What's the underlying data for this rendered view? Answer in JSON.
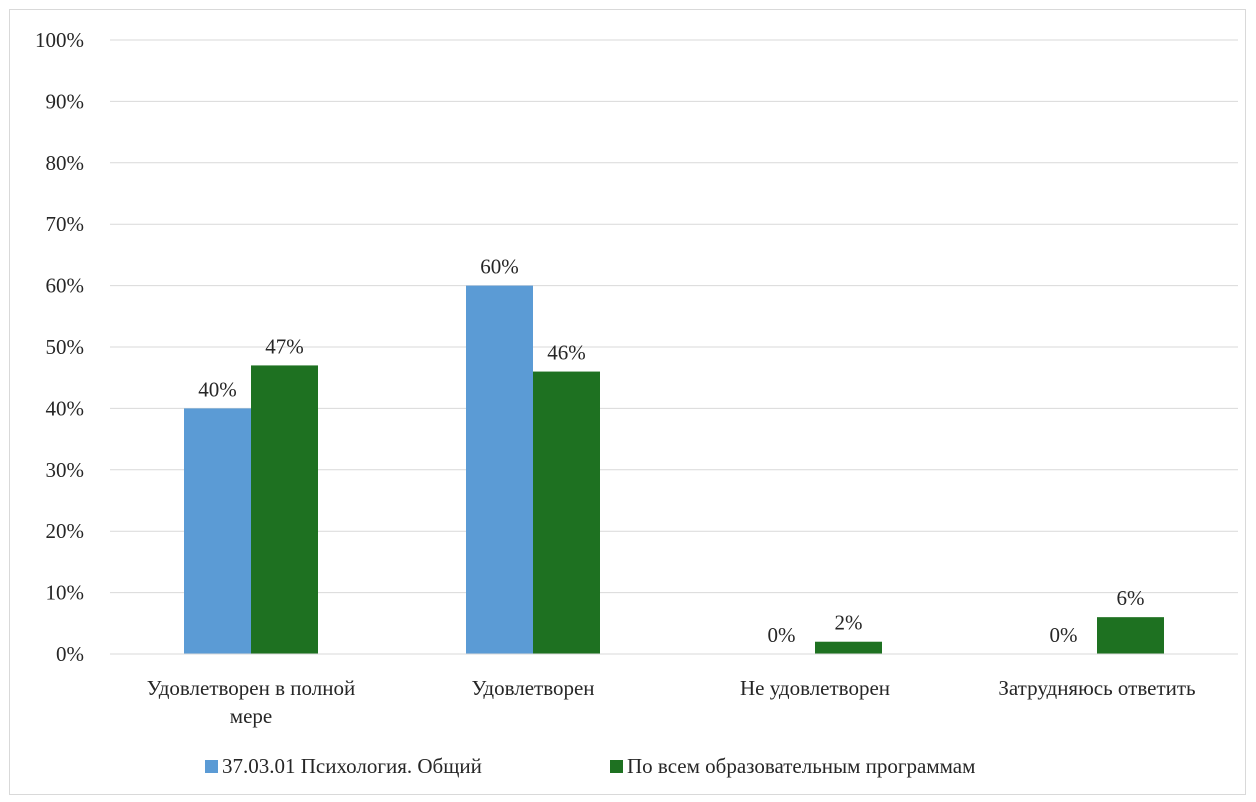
{
  "chart_data": {
    "type": "bar",
    "categories": [
      "Удовлетворен в полной мере",
      "Удовлетворен",
      "Не удовлетворен",
      "Затрудняюсь ответить"
    ],
    "category_lines": [
      [
        "Удовлетворен в полной",
        "мере"
      ],
      [
        "Удовлетворен"
      ],
      [
        "Не удовлетворен"
      ],
      [
        "Затрудняюсь ответить"
      ]
    ],
    "series": [
      {
        "name": "37.03.01 Психология. Общий",
        "values": [
          40,
          60,
          0,
          0
        ],
        "labels": [
          "40%",
          "60%",
          "0%",
          "0%"
        ],
        "color": "#5b9bd5"
      },
      {
        "name": "По всем образовательным программам",
        "values": [
          47,
          46,
          2,
          6
        ],
        "labels": [
          "47%",
          "46%",
          "2%",
          "6%"
        ],
        "color": "#1e7121"
      }
    ],
    "ylim": [
      0,
      100
    ],
    "yticks": [
      "0%",
      "10%",
      "20%",
      "30%",
      "40%",
      "50%",
      "60%",
      "70%",
      "80%",
      "90%",
      "100%"
    ],
    "grid": true,
    "legend_position": "bottom",
    "gridline_color": "#d9d9d9"
  }
}
